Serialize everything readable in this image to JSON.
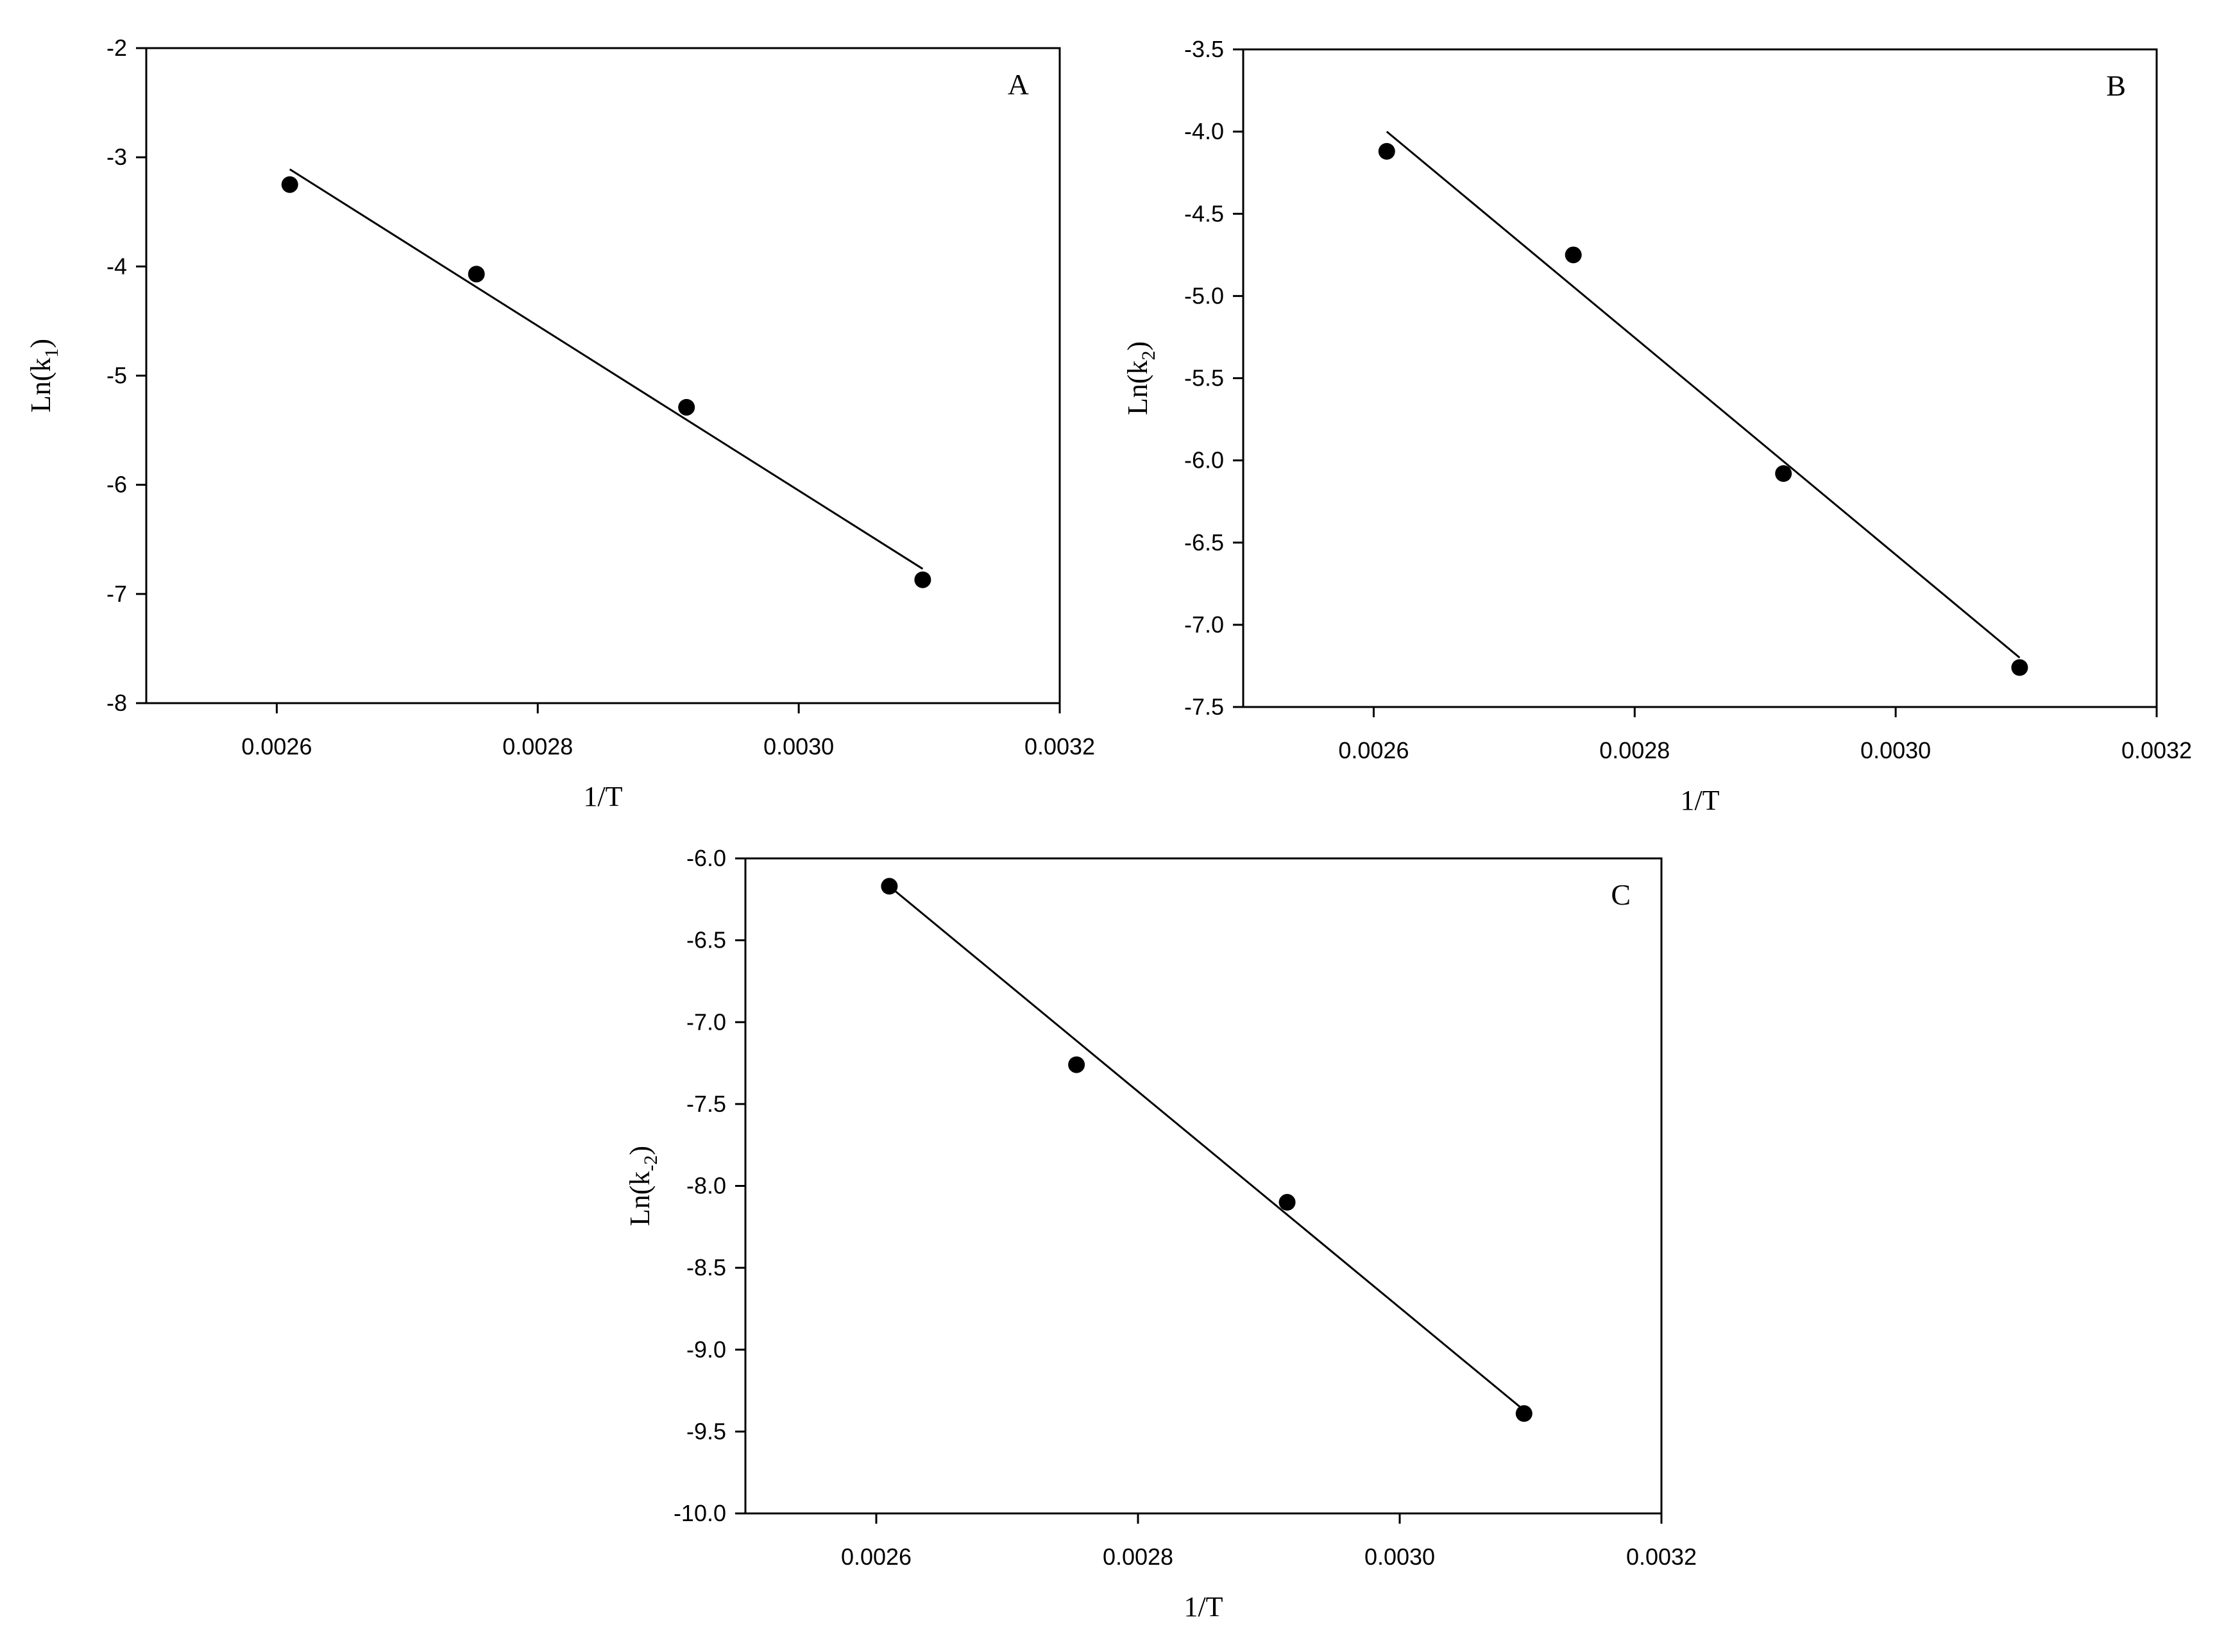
{
  "chart_data": [
    {
      "type": "scatter",
      "panel_label": "A",
      "xlabel": "1/T",
      "ylabel": {
        "base": "Ln(k",
        "subscript": "1",
        "close": ")"
      },
      "xlim": [
        0.0025,
        0.0032
      ],
      "ylim": [
        -8,
        -2
      ],
      "xticks": [
        0.0026,
        0.0028,
        0.003,
        0.0032
      ],
      "xtick_labels": [
        "0.0026",
        "0.0028",
        "0.0030",
        "0.0032"
      ],
      "yticks": [
        -2,
        -3,
        -4,
        -5,
        -6,
        -7,
        -8
      ],
      "ytick_labels": [
        "-2",
        "-3",
        "-4",
        "-5",
        "-6",
        "-7",
        "-8"
      ],
      "series": [
        {
          "x": [
            0.00261,
            0.002753,
            0.002914,
            0.003095
          ],
          "y": [
            -3.25,
            -4.07,
            -5.29,
            -6.87
          ]
        }
      ],
      "fit_line": {
        "x": [
          0.00261,
          0.003095
        ],
        "y": [
          -3.11,
          -6.77
        ]
      },
      "grid": false
    },
    {
      "type": "scatter",
      "panel_label": "B",
      "xlabel": "1/T",
      "ylabel": {
        "base": "Ln(k",
        "subscript": "2",
        "close": ")"
      },
      "xlim": [
        0.0025,
        0.0032
      ],
      "ylim": [
        -7.5,
        -3.5
      ],
      "xticks": [
        0.0026,
        0.0028,
        0.003,
        0.0032
      ],
      "xtick_labels": [
        "0.0026",
        "0.0028",
        "0.0030",
        "0.0032"
      ],
      "yticks": [
        -3.5,
        -4.0,
        -4.5,
        -5.0,
        -5.5,
        -6.0,
        -6.5,
        -7.0,
        -7.5
      ],
      "ytick_labels": [
        "-3.5",
        "-4.0",
        "-4.5",
        "-5.0",
        "-5.5",
        "-6.0",
        "-6.5",
        "-7.0",
        "-7.5"
      ],
      "series": [
        {
          "x": [
            0.00261,
            0.002753,
            0.002914,
            0.003095
          ],
          "y": [
            -4.12,
            -4.75,
            -6.08,
            -7.26
          ]
        }
      ],
      "fit_line": {
        "x": [
          0.00261,
          0.003095
        ],
        "y": [
          -4.0,
          -7.2
        ]
      },
      "grid": false
    },
    {
      "type": "scatter",
      "panel_label": "C",
      "xlabel": "1/T",
      "ylabel": {
        "base": "Ln(k",
        "subscript": "-2",
        "close": ")"
      },
      "xlim": [
        0.0025,
        0.0032
      ],
      "ylim": [
        -10.0,
        -6.0
      ],
      "xticks": [
        0.0026,
        0.0028,
        0.003,
        0.0032
      ],
      "xtick_labels": [
        "0.0026",
        "0.0028",
        "0.0030",
        "0.0032"
      ],
      "yticks": [
        -6.0,
        -6.5,
        -7.0,
        -7.5,
        -8.0,
        -8.5,
        -9.0,
        -9.5,
        -10.0
      ],
      "ytick_labels": [
        "-6.0",
        "-6.5",
        "-7.0",
        "-7.5",
        "-8.0",
        "-8.5",
        "-9.0",
        "-9.5",
        "-10.0"
      ],
      "series": [
        {
          "x": [
            0.00261,
            0.002753,
            0.002914,
            0.003095
          ],
          "y": [
            -6.17,
            -7.26,
            -8.1,
            -9.39
          ]
        }
      ],
      "fit_line": {
        "x": [
          0.00261,
          0.003095
        ],
        "y": [
          -6.17,
          -9.37
        ]
      },
      "grid": false
    }
  ]
}
